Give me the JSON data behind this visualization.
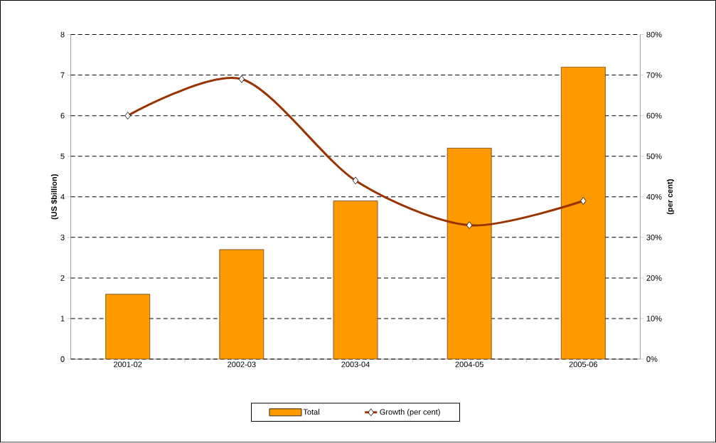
{
  "chart_data": {
    "type": "bar",
    "categories": [
      "2001-02",
      "2002-03",
      "2003-04",
      "2004-05",
      "2005-06"
    ],
    "ylabel": "(US $billion)",
    "y2label": "(per cent)",
    "series": [
      {
        "name": "Total",
        "color": "#ff9900",
        "values": [
          1.6,
          2.7,
          3.9,
          5.2,
          7.2
        ]
      },
      {
        "name": "Growth (per cent)",
        "type": "line",
        "axis": "y2",
        "color": "#993300",
        "marker": "diamond",
        "values": [
          60,
          69,
          44,
          33,
          39
        ]
      }
    ],
    "ylim": [
      0,
      8
    ],
    "yticks": [
      0,
      1,
      2,
      3,
      4,
      5,
      6,
      7,
      8
    ],
    "y2lim": [
      0,
      80
    ],
    "y2ticks": [
      {
        "value": 0,
        "label": "0%"
      },
      {
        "value": 10,
        "label": "10%"
      },
      {
        "value": 20,
        "label": "20%"
      },
      {
        "value": 30,
        "label": "30%"
      },
      {
        "value": 40,
        "label": "40%"
      },
      {
        "value": 50,
        "label": "50%"
      },
      {
        "value": 60,
        "label": "60%"
      },
      {
        "value": 70,
        "label": "70%"
      },
      {
        "value": 80,
        "label": "80%"
      }
    ],
    "grid": "y",
    "legend": "bottom"
  }
}
